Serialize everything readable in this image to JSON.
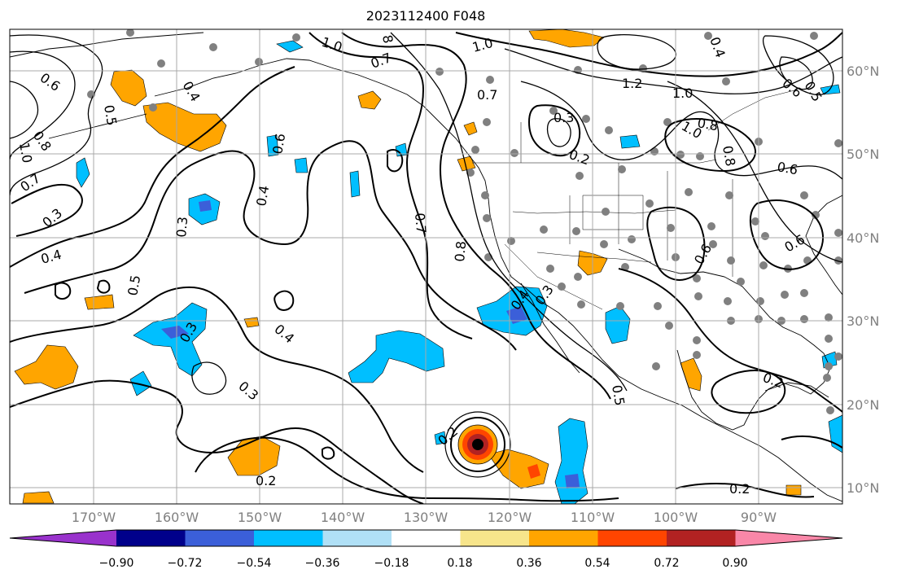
{
  "title": "2023112400 F048",
  "colors": {
    "ocean": "#ffffff",
    "grid": "#a8a8a8",
    "coast": "#000000",
    "station": "#808080",
    "contour": "#000000"
  },
  "longitude_labels": [
    "170°W",
    "160°W",
    "150°W",
    "140°W",
    "130°W",
    "120°W",
    "110°W",
    "100°W",
    "90°W"
  ],
  "latitude_labels": [
    "60°N",
    "50°N",
    "40°N",
    "30°N",
    "20°N",
    "10°N"
  ],
  "colorbar": {
    "colors": [
      "#9932cc",
      "#00008b",
      "#3b5fd9",
      "#00bfff",
      "#b0e0f6",
      "#ffffff",
      "#f7e58b",
      "#ffa500",
      "#ff4500",
      "#b22222",
      "#f987a8"
    ],
    "tick_labels": [
      "−0.90",
      "−0.72",
      "−0.54",
      "−0.36",
      "−0.18",
      "0.18",
      "0.36",
      "0.54",
      "0.72",
      "0.90"
    ]
  },
  "contour_labels": [
    "1.0",
    "0.6",
    "0.5",
    "0.4",
    "1.0",
    "8",
    "0.7",
    "1.0",
    "0.4",
    "0.5",
    "0.6",
    "0.8",
    "1.2",
    "1.0",
    "0.7",
    "0.3",
    "0.2",
    "0.8",
    "0.8",
    "0.6",
    "1.0",
    "0.7",
    "0.3",
    "0.4",
    "0.6",
    "0.4",
    "0.3",
    "0.7",
    "0.8",
    "0.6",
    "0.6",
    "0.4",
    "0.5",
    "0.3",
    "0.3",
    "0.4",
    "0.5",
    "0.3",
    "0.2",
    "0.2",
    "0.2",
    "0.2"
  ]
}
